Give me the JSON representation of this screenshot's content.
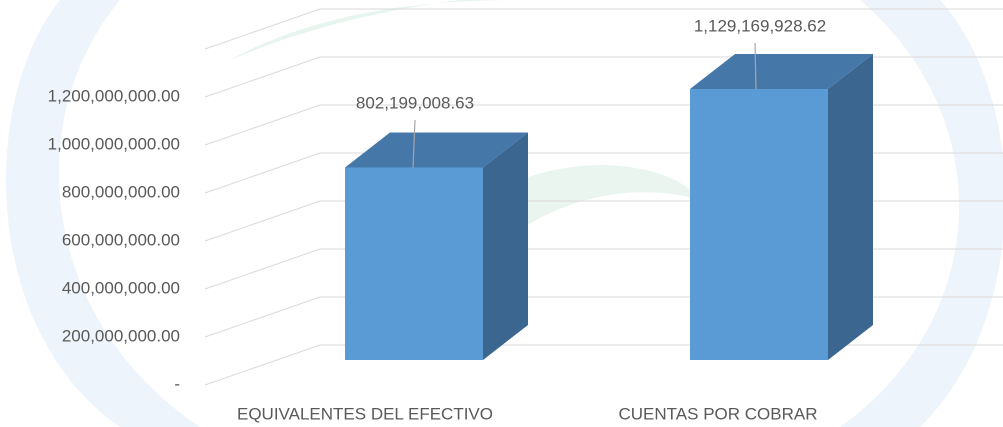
{
  "chart_data": {
    "type": "bar3d",
    "categories": [
      "EQUIVALENTES DEL EFECTIVO",
      "CUENTAS POR COBRAR"
    ],
    "values": [
      802199008.63,
      1129169928.62
    ],
    "value_labels": [
      "802,199,008.63",
      "1,129,169,928.62"
    ],
    "colors": {
      "front": "#5b9bd5",
      "side": "#3b6690",
      "top": "#4677a9"
    },
    "ylim": [
      0,
      1400000000
    ],
    "yticks": [
      {
        "value": 0,
        "label": "-"
      },
      {
        "value": 200000000,
        "label": "200,000,000.00"
      },
      {
        "value": 400000000,
        "label": "400,000,000.00"
      },
      {
        "value": 600000000,
        "label": "600,000,000.00"
      },
      {
        "value": 800000000,
        "label": "800,000,000.00"
      },
      {
        "value": 1000000000,
        "label": "1,000,000,000.00"
      },
      {
        "value": 1200000000,
        "label": "1,200,000,000.00"
      }
    ],
    "grid": true
  }
}
